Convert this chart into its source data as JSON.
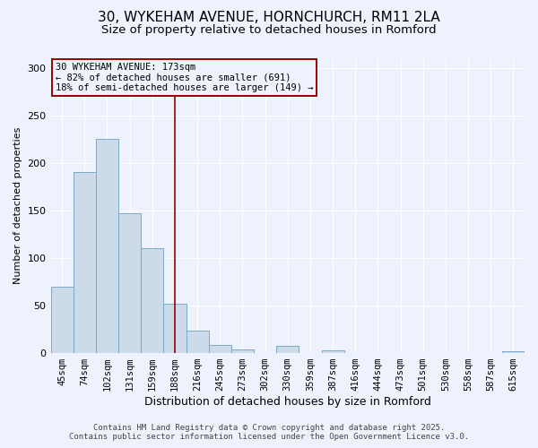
{
  "title": "30, WYKEHAM AVENUE, HORNCHURCH, RM11 2LA",
  "subtitle": "Size of property relative to detached houses in Romford",
  "xlabel": "Distribution of detached houses by size in Romford",
  "ylabel": "Number of detached properties",
  "bar_labels": [
    "45sqm",
    "74sqm",
    "102sqm",
    "131sqm",
    "159sqm",
    "188sqm",
    "216sqm",
    "245sqm",
    "273sqm",
    "302sqm",
    "330sqm",
    "359sqm",
    "387sqm",
    "416sqm",
    "444sqm",
    "473sqm",
    "501sqm",
    "530sqm",
    "558sqm",
    "587sqm",
    "615sqm"
  ],
  "bar_values": [
    70,
    190,
    225,
    147,
    110,
    52,
    24,
    9,
    4,
    0,
    8,
    0,
    3,
    0,
    0,
    0,
    0,
    0,
    0,
    0,
    2
  ],
  "bar_color": "#cddaea",
  "bar_edge_color": "#7aaac8",
  "vline_x_index": 5,
  "vline_color": "#990000",
  "annotation_line1": "30 WYKEHAM AVENUE: 173sqm",
  "annotation_line2": "← 82% of detached houses are smaller (691)",
  "annotation_line3": "18% of semi-detached houses are larger (149) →",
  "annotation_box_edge_color": "#990000",
  "ylim": [
    0,
    310
  ],
  "yticks": [
    0,
    50,
    100,
    150,
    200,
    250,
    300
  ],
  "footer_line1": "Contains HM Land Registry data © Crown copyright and database right 2025.",
  "footer_line2": "Contains public sector information licensed under the Open Government Licence v3.0.",
  "bg_color": "#eef2fc",
  "grid_color": "#ffffff",
  "title_fontsize": 11,
  "subtitle_fontsize": 9.5,
  "xlabel_fontsize": 9,
  "ylabel_fontsize": 8,
  "tick_fontsize": 7.5,
  "annotation_fontsize": 7.5,
  "footer_fontsize": 6.5
}
